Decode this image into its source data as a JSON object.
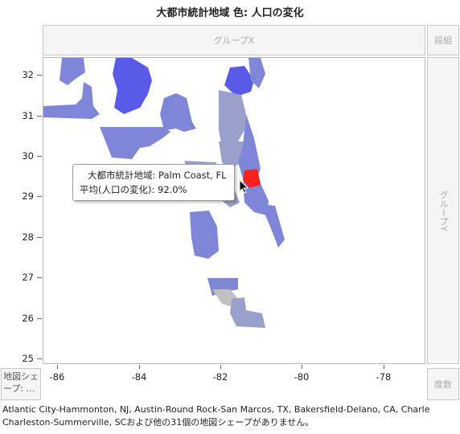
{
  "title": "大都市統計地域 色: 人口の変化",
  "zones": {
    "group_x": "グループX",
    "group_y": "グループY",
    "wrap": "段組",
    "freq": "度数",
    "map_shape": "地図シェープ: …"
  },
  "axes": {
    "y_ticks": [
      "32",
      "31",
      "30",
      "29",
      "28",
      "27",
      "26",
      "25"
    ],
    "x_ticks": [
      "-86",
      "-84",
      "-82",
      "-80",
      "-78"
    ]
  },
  "tooltip": {
    "line1": "大都市統計地域: Palm Coast, FL",
    "line2": "平均(人口の変化): 92.0%"
  },
  "footer": {
    "line1": "Atlantic City-Hammonton, NJ, Austin-Round Rock-San Marcos, TX, Bakersfield-Delano, CA, Charle",
    "line2": "Charleston-Summerville, SCおよび他の31個の地図シェープがありません。"
  },
  "colors": {
    "highlight": "#ff2020",
    "high": "#5a5ae8",
    "mid": "#7f86d8",
    "low": "#9aa0cc",
    "gray": "#c0c0c0"
  }
}
